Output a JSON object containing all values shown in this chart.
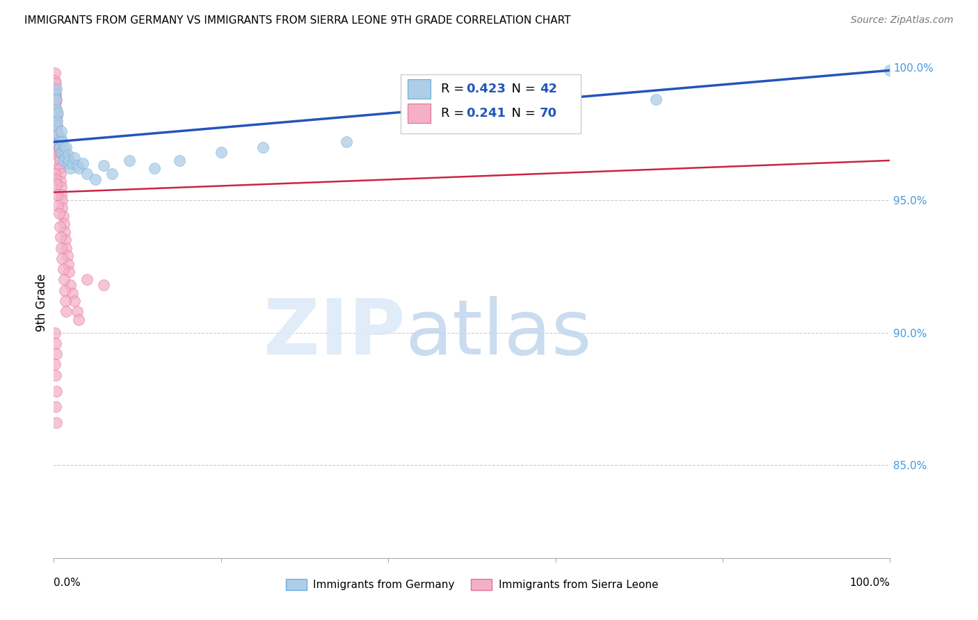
{
  "title": "IMMIGRANTS FROM GERMANY VS IMMIGRANTS FROM SIERRA LEONE 9TH GRADE CORRELATION CHART",
  "source": "Source: ZipAtlas.com",
  "ylabel": "9th Grade",
  "xmin": 0.0,
  "xmax": 1.0,
  "ymin": 0.815,
  "ymax": 1.008,
  "germany_color": "#aecde8",
  "germany_edge": "#6baed6",
  "sierra_leone_color": "#f4b0c8",
  "sierra_leone_edge": "#e07090",
  "trend_germany_color": "#2255bb",
  "trend_sierra_color": "#cc2244",
  "legend_germany": "Immigrants from Germany",
  "legend_sierra": "Immigrants from Sierra Leone",
  "r_germany": 0.423,
  "n_germany": 42,
  "r_sierra": 0.241,
  "n_sierra": 70
}
